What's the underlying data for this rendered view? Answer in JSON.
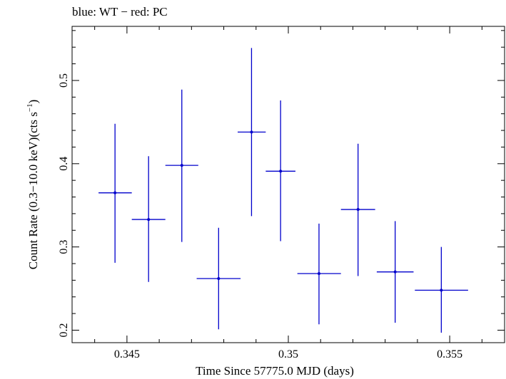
{
  "chart_data": {
    "type": "scatter",
    "title": "blue: WT − red: PC",
    "xlabel": "Time Since 57775.0 MJD (days)",
    "ylabel_main": "Count Rate (0.3−10.0 keV)(cts s",
    "ylabel_sup": "−1",
    "ylabel_close": ")",
    "xlim": [
      0.3433,
      0.3567
    ],
    "ylim": [
      0.185,
      0.565
    ],
    "xticks": [
      {
        "value": 0.345,
        "label": "0.345"
      },
      {
        "value": 0.35,
        "label": "0.35"
      },
      {
        "value": 0.355,
        "label": "0.355"
      }
    ],
    "yticks": [
      {
        "value": 0.2,
        "label": "0.2"
      },
      {
        "value": 0.3,
        "label": "0.3"
      },
      {
        "value": 0.4,
        "label": "0.4"
      },
      {
        "value": 0.5,
        "label": "0.5"
      }
    ],
    "grid": false,
    "series": [
      {
        "color": "#0000cc",
        "points": [
          {
            "x": 0.34463,
            "xlo": 0.34412,
            "xhi": 0.34515,
            "y": 0.365,
            "ylo": 0.281,
            "yhi": 0.448
          },
          {
            "x": 0.34567,
            "xlo": 0.34515,
            "xhi": 0.34619,
            "y": 0.333,
            "ylo": 0.258,
            "yhi": 0.409
          },
          {
            "x": 0.3467,
            "xlo": 0.34619,
            "xhi": 0.34721,
            "y": 0.398,
            "ylo": 0.306,
            "yhi": 0.489
          },
          {
            "x": 0.34784,
            "xlo": 0.34716,
            "xhi": 0.34852,
            "y": 0.262,
            "ylo": 0.201,
            "yhi": 0.323
          },
          {
            "x": 0.34886,
            "xlo": 0.34843,
            "xhi": 0.3493,
            "y": 0.438,
            "ylo": 0.337,
            "yhi": 0.539
          },
          {
            "x": 0.34976,
            "xlo": 0.3493,
            "xhi": 0.35022,
            "y": 0.391,
            "ylo": 0.307,
            "yhi": 0.476
          },
          {
            "x": 0.35095,
            "xlo": 0.35028,
            "xhi": 0.35163,
            "y": 0.268,
            "ylo": 0.207,
            "yhi": 0.328
          },
          {
            "x": 0.35216,
            "xlo": 0.35163,
            "xhi": 0.35269,
            "y": 0.345,
            "ylo": 0.265,
            "yhi": 0.424
          },
          {
            "x": 0.35331,
            "xlo": 0.35274,
            "xhi": 0.35388,
            "y": 0.27,
            "ylo": 0.209,
            "yhi": 0.331
          },
          {
            "x": 0.35474,
            "xlo": 0.35392,
            "xhi": 0.35557,
            "y": 0.248,
            "ylo": 0.197,
            "yhi": 0.3
          }
        ]
      }
    ]
  }
}
